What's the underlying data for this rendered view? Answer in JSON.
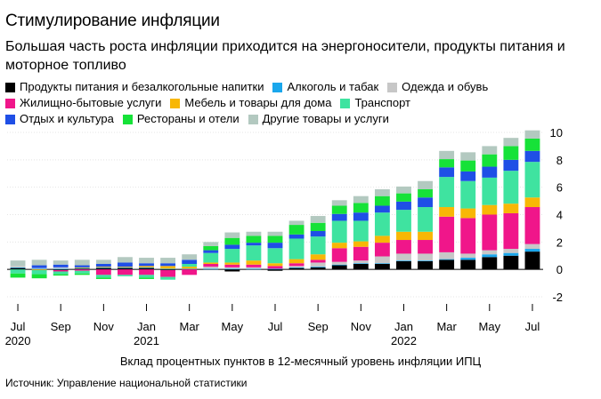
{
  "header": {
    "title": "Стимулирование инфляции",
    "subtitle": "Большая часть роста инфляции приходится на энергоносители, продукты питания и моторное топливо"
  },
  "legend": {
    "rows": [
      [
        {
          "label": "Продукты питания и безалкогольные напитки",
          "color": "#000000"
        },
        {
          "label": "Алкоголь и табак",
          "color": "#1aa7ec"
        },
        {
          "label": "Одежда и обувь",
          "color": "#c7c7c7"
        }
      ],
      [
        {
          "label": "Жилищно-бытовые услуги",
          "color": "#f0168a"
        },
        {
          "label": "Мебель и товары для дома",
          "color": "#f8b705"
        },
        {
          "label": "Транспорт",
          "color": "#3fe3a0"
        }
      ],
      [
        {
          "label": "Отдых и культура",
          "color": "#1f4fe6"
        },
        {
          "label": "Рестораны и отели",
          "color": "#16e238"
        },
        {
          "label": "Другие товары и услуги",
          "color": "#b3c9c0"
        }
      ]
    ]
  },
  "chart_data": {
    "type": "bar",
    "stacked": true,
    "title": "Стимулирование инфляции",
    "xlabel": "Вклад процентных пунктов в 12-месячный уровень инфляции ИПЦ",
    "ylabel": "",
    "ylim": [
      -2,
      10
    ],
    "yticks": [
      -2,
      0,
      2,
      4,
      6,
      8,
      10
    ],
    "y_axis_position": "right",
    "categories": [
      "Jul 2020",
      "Aug 2020",
      "Sep 2020",
      "Oct 2020",
      "Nov 2020",
      "Dec 2020",
      "Jan 2021",
      "Feb 2021",
      "Mar 2021",
      "Apr 2021",
      "May 2021",
      "Jun 2021",
      "Jul 2021",
      "Aug 2021",
      "Sep 2021",
      "Oct 2021",
      "Nov 2021",
      "Dec 2021",
      "Jan 2022",
      "Feb 2022",
      "Mar 2022",
      "Apr 2022",
      "May 2022",
      "Jun 2022",
      "Jul 2022"
    ],
    "tick_labels": [
      {
        "index": 0,
        "label": "Jul",
        "year": "2020"
      },
      {
        "index": 2,
        "label": "Sep",
        "year": ""
      },
      {
        "index": 4,
        "label": "Nov",
        "year": ""
      },
      {
        "index": 6,
        "label": "Jan",
        "year": "2021"
      },
      {
        "index": 8,
        "label": "Mar",
        "year": ""
      },
      {
        "index": 10,
        "label": "May",
        "year": ""
      },
      {
        "index": 12,
        "label": "Jul",
        "year": ""
      },
      {
        "index": 14,
        "label": "Sep",
        "year": ""
      },
      {
        "index": 16,
        "label": "Nov",
        "year": ""
      },
      {
        "index": 18,
        "label": "Jan",
        "year": "2022"
      },
      {
        "index": 20,
        "label": "Mar",
        "year": ""
      },
      {
        "index": 22,
        "label": "May",
        "year": ""
      },
      {
        "index": 24,
        "label": "Jul",
        "year": ""
      }
    ],
    "series": [
      {
        "name": "Продукты питания и безалкогольные напитки",
        "color": "#000000",
        "values": [
          0.1,
          0.0,
          -0.05,
          0.05,
          0.1,
          0.1,
          0.1,
          -0.05,
          0.0,
          0.0,
          -0.15,
          0.0,
          -0.1,
          0.1,
          0.15,
          0.3,
          0.4,
          0.4,
          0.6,
          0.6,
          0.7,
          0.7,
          0.9,
          1.0,
          1.3
        ]
      },
      {
        "name": "Алкоголь и табак",
        "color": "#1aa7ec",
        "values": [
          0.05,
          0.05,
          0.05,
          0.05,
          0.05,
          0.05,
          0.05,
          0.05,
          0.05,
          0.05,
          0.05,
          0.05,
          0.05,
          0.05,
          0.05,
          0.05,
          0.05,
          0.05,
          0.05,
          0.05,
          0.05,
          0.15,
          0.2,
          0.2,
          0.2
        ]
      },
      {
        "name": "Одежда и обувь",
        "color": "#c7c7c7",
        "values": [
          0.1,
          0.05,
          0.1,
          0.0,
          0.0,
          0.0,
          0.0,
          0.0,
          0.0,
          0.15,
          0.1,
          0.1,
          0.0,
          0.1,
          0.3,
          0.2,
          0.2,
          0.5,
          0.5,
          0.5,
          0.5,
          0.3,
          0.3,
          0.3,
          0.35
        ]
      },
      {
        "name": "Жилищно-бытовые услуги",
        "color": "#f0168a",
        "values": [
          0.0,
          0.0,
          -0.1,
          -0.1,
          -0.4,
          -0.4,
          -0.4,
          -0.5,
          -0.4,
          0.2,
          0.2,
          0.2,
          0.2,
          0.2,
          0.2,
          1.0,
          1.0,
          1.0,
          1.0,
          1.0,
          2.6,
          2.6,
          2.6,
          2.6,
          2.7
        ]
      },
      {
        "name": "Мебель и товары для дома",
        "color": "#f8b705",
        "values": [
          0.0,
          -0.05,
          0.0,
          0.05,
          0.05,
          0.05,
          0.1,
          0.2,
          0.15,
          0.1,
          0.15,
          0.3,
          0.2,
          0.3,
          0.4,
          0.4,
          0.4,
          0.5,
          0.6,
          0.6,
          0.7,
          0.7,
          0.7,
          0.7,
          0.7
        ]
      },
      {
        "name": "Транспорт",
        "color": "#3fe3a0",
        "values": [
          -0.3,
          -0.3,
          -0.2,
          -0.2,
          -0.2,
          -0.1,
          -0.2,
          -0.2,
          0.2,
          0.7,
          1.0,
          1.1,
          1.1,
          1.5,
          1.3,
          1.6,
          1.5,
          1.7,
          1.6,
          1.8,
          2.2,
          2.0,
          2.0,
          2.4,
          2.6
        ]
      },
      {
        "name": "Отдых и культура",
        "color": "#1f4fe6",
        "values": [
          0.0,
          0.2,
          0.2,
          0.15,
          0.2,
          0.3,
          0.2,
          0.2,
          0.3,
          0.2,
          0.3,
          0.2,
          0.4,
          0.3,
          0.4,
          0.5,
          0.6,
          0.5,
          0.6,
          0.7,
          0.7,
          0.7,
          0.8,
          0.8,
          0.8
        ]
      },
      {
        "name": "Рестораны и отели",
        "color": "#16e238",
        "values": [
          -0.3,
          -0.3,
          -0.1,
          -0.1,
          -0.1,
          0.0,
          -0.1,
          0.0,
          0.0,
          0.3,
          0.5,
          0.5,
          0.5,
          0.7,
          0.6,
          0.6,
          0.7,
          0.7,
          0.6,
          0.6,
          0.6,
          0.8,
          0.9,
          1.0,
          0.9
        ]
      },
      {
        "name": "Другие товары и услуги",
        "color": "#b3c9c0",
        "values": [
          0.4,
          0.4,
          0.3,
          0.4,
          0.3,
          0.4,
          0.4,
          0.4,
          0.4,
          0.3,
          0.4,
          0.3,
          0.3,
          0.3,
          0.5,
          0.4,
          0.5,
          0.5,
          0.5,
          0.6,
          0.6,
          0.6,
          0.6,
          0.6,
          0.6
        ]
      }
    ]
  },
  "footer": {
    "xlabel": "Вклад процентных пунктов в 12-месячный уровень инфляции ИПЦ",
    "source": "Источник: Управление национальной статистики"
  }
}
